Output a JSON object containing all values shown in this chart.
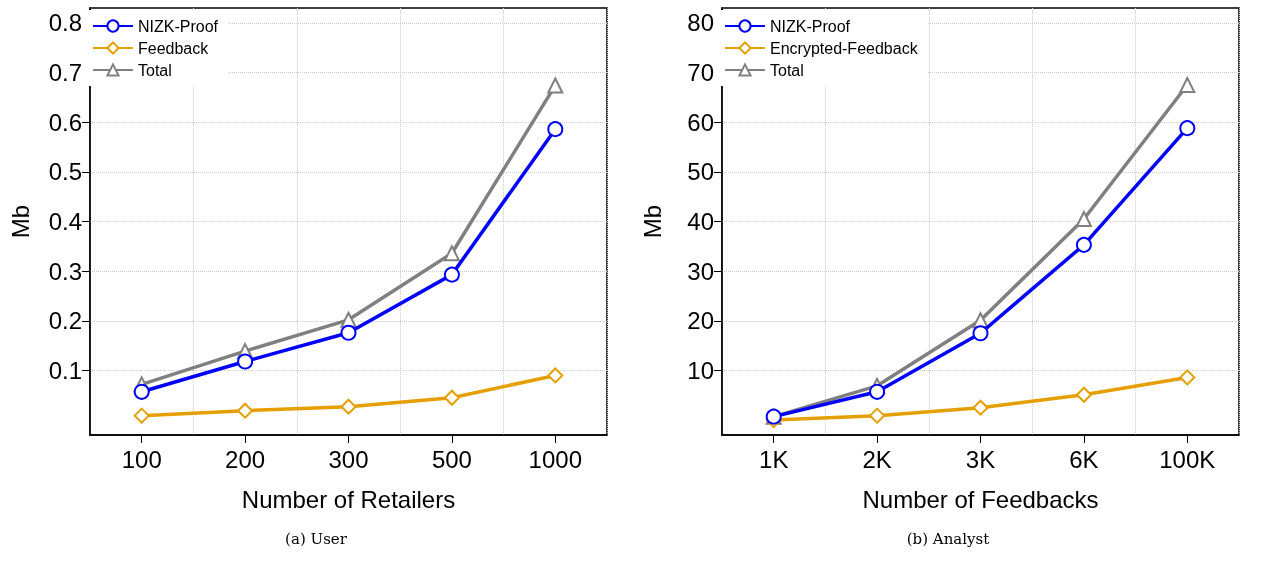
{
  "chart_data": [
    {
      "type": "line",
      "xlabel": "Number of Retailers",
      "ylabel": "Mb",
      "annotations": [
        "(a) User"
      ],
      "categories": [
        "100",
        "200",
        "300",
        "500",
        "1000"
      ],
      "ylim": [
        -0.03,
        0.83
      ],
      "yticks": [
        0.1,
        0.2,
        0.3,
        0.4,
        0.5,
        0.6,
        0.7,
        0.8
      ],
      "grid": true,
      "legend": "top left",
      "series": [
        {
          "name": "NIZK-Proof",
          "color": "#0000ff",
          "marker": "circle",
          "values": [
            0.057,
            0.118,
            0.176,
            0.293,
            0.586
          ]
        },
        {
          "name": "Feedback",
          "color": "#e69f00",
          "marker": "diamond",
          "values": [
            0.009,
            0.019,
            0.027,
            0.045,
            0.09
          ]
        },
        {
          "name": "Total",
          "color": "#808080",
          "marker": "triangle",
          "values": [
            0.072,
            0.139,
            0.202,
            0.336,
            0.674
          ]
        }
      ]
    },
    {
      "type": "line",
      "xlabel": "Number of Feedbacks",
      "ylabel": "Mb",
      "annotations": [
        "(b) Analyst"
      ],
      "categories": [
        "1K",
        "2K",
        "3K",
        "6K",
        "100K"
      ],
      "ylim": [
        -3,
        83
      ],
      "yticks": [
        10,
        20,
        30,
        40,
        50,
        60,
        70,
        80
      ],
      "grid": true,
      "legend": "top left",
      "series": [
        {
          "name": "NIZK-Proof",
          "color": "#0000ff",
          "marker": "circle",
          "values": [
            0.7,
            5.7,
            17.5,
            35.3,
            58.8
          ]
        },
        {
          "name": "Encrypted-Feedback",
          "color": "#e69f00",
          "marker": "diamond",
          "values": [
            0,
            0.9,
            2.5,
            5.1,
            8.6
          ]
        },
        {
          "name": "Total",
          "color": "#808080",
          "marker": "triangle",
          "values": [
            0.7,
            6.9,
            20.1,
            40.5,
            67.5
          ]
        }
      ]
    }
  ]
}
